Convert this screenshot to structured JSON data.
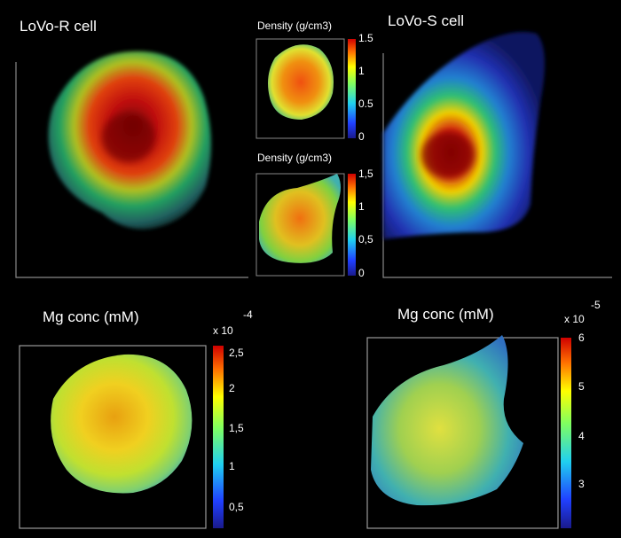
{
  "panels": {
    "top_left": {
      "title": "LoVo-R cell"
    },
    "top_right": {
      "title": "LoVo-S cell"
    },
    "inset_top": {
      "title": "Density (g/cm3)",
      "ticks": [
        "1.5",
        "1",
        "0.5",
        "0"
      ]
    },
    "inset_bottom": {
      "title": "Density (g/cm3)",
      "ticks": [
        "1,5",
        "1",
        "0,5",
        "0"
      ]
    },
    "bottom_left": {
      "title": "Mg conc (mM)",
      "scale_base": "x 10",
      "scale_exp": "-4",
      "ticks": [
        "2,5",
        "2",
        "1,5",
        "1",
        "0,5"
      ]
    },
    "bottom_right": {
      "title": "Mg conc (mM)",
      "scale_base": "x 10",
      "scale_exp": "-5",
      "ticks": [
        "6",
        "5",
        "4",
        "3"
      ]
    }
  },
  "colors": {
    "background": "#000000",
    "jet": [
      "#00007f",
      "#0000ff",
      "#00bfff",
      "#7fff7f",
      "#ffff00",
      "#ff8000",
      "#ff0000",
      "#7f0000"
    ]
  }
}
